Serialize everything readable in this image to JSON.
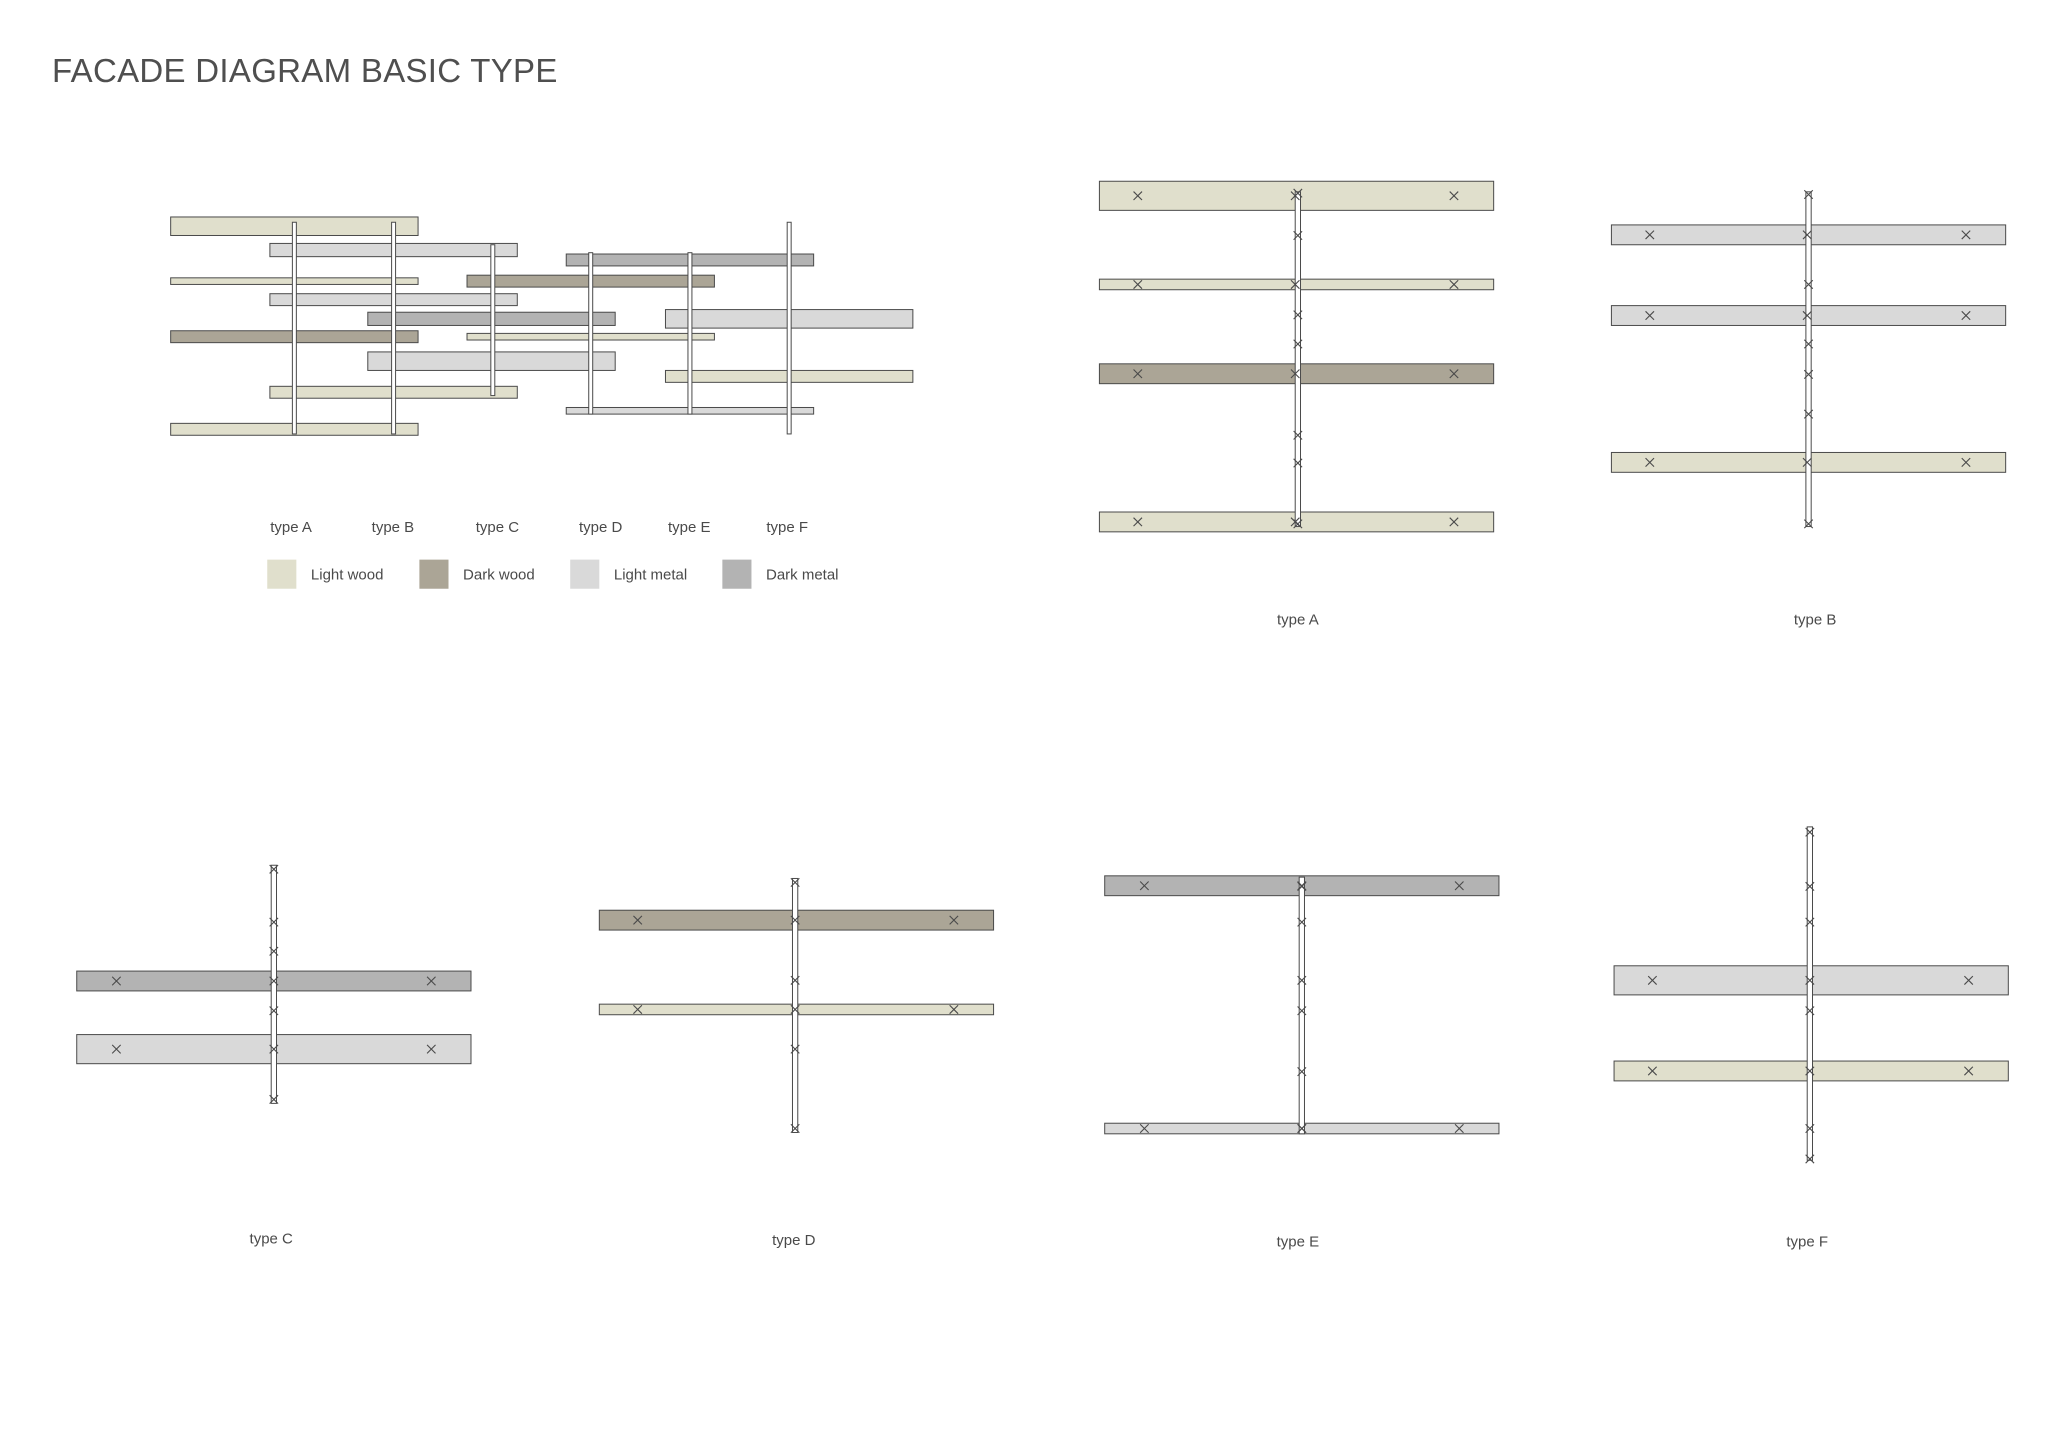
{
  "title": "FACADE DIAGRAM BASIC TYPE",
  "materials": [
    {
      "id": "light-wood",
      "label": "Light wood",
      "color": "#e0dfcc"
    },
    {
      "id": "dark-wood",
      "label": "Dark wood",
      "color": "#aba596"
    },
    {
      "id": "light-metal",
      "label": "Light metal",
      "color": "#d9d9d9"
    },
    {
      "id": "dark-metal",
      "label": "Dark metal",
      "color": "#b3b3b3"
    }
  ],
  "overview": {
    "type_labels": [
      "type A",
      "type B",
      "type C",
      "type D",
      "type E",
      "type F"
    ]
  },
  "details": [
    {
      "label": "type A",
      "panels": [
        "light-wood",
        "light-wood",
        "dark-wood",
        "light-wood"
      ]
    },
    {
      "label": "type B",
      "panels": [
        "light-metal",
        "light-metal",
        "light-wood"
      ]
    },
    {
      "label": "type C",
      "panels": [
        "dark-metal",
        "light-metal"
      ]
    },
    {
      "label": "type D",
      "panels": [
        "dark-wood",
        "light-wood"
      ]
    },
    {
      "label": "type E",
      "panels": [
        "dark-metal",
        "light-metal"
      ]
    },
    {
      "label": "type F",
      "panels": [
        "light-metal",
        "light-wood"
      ]
    }
  ]
}
